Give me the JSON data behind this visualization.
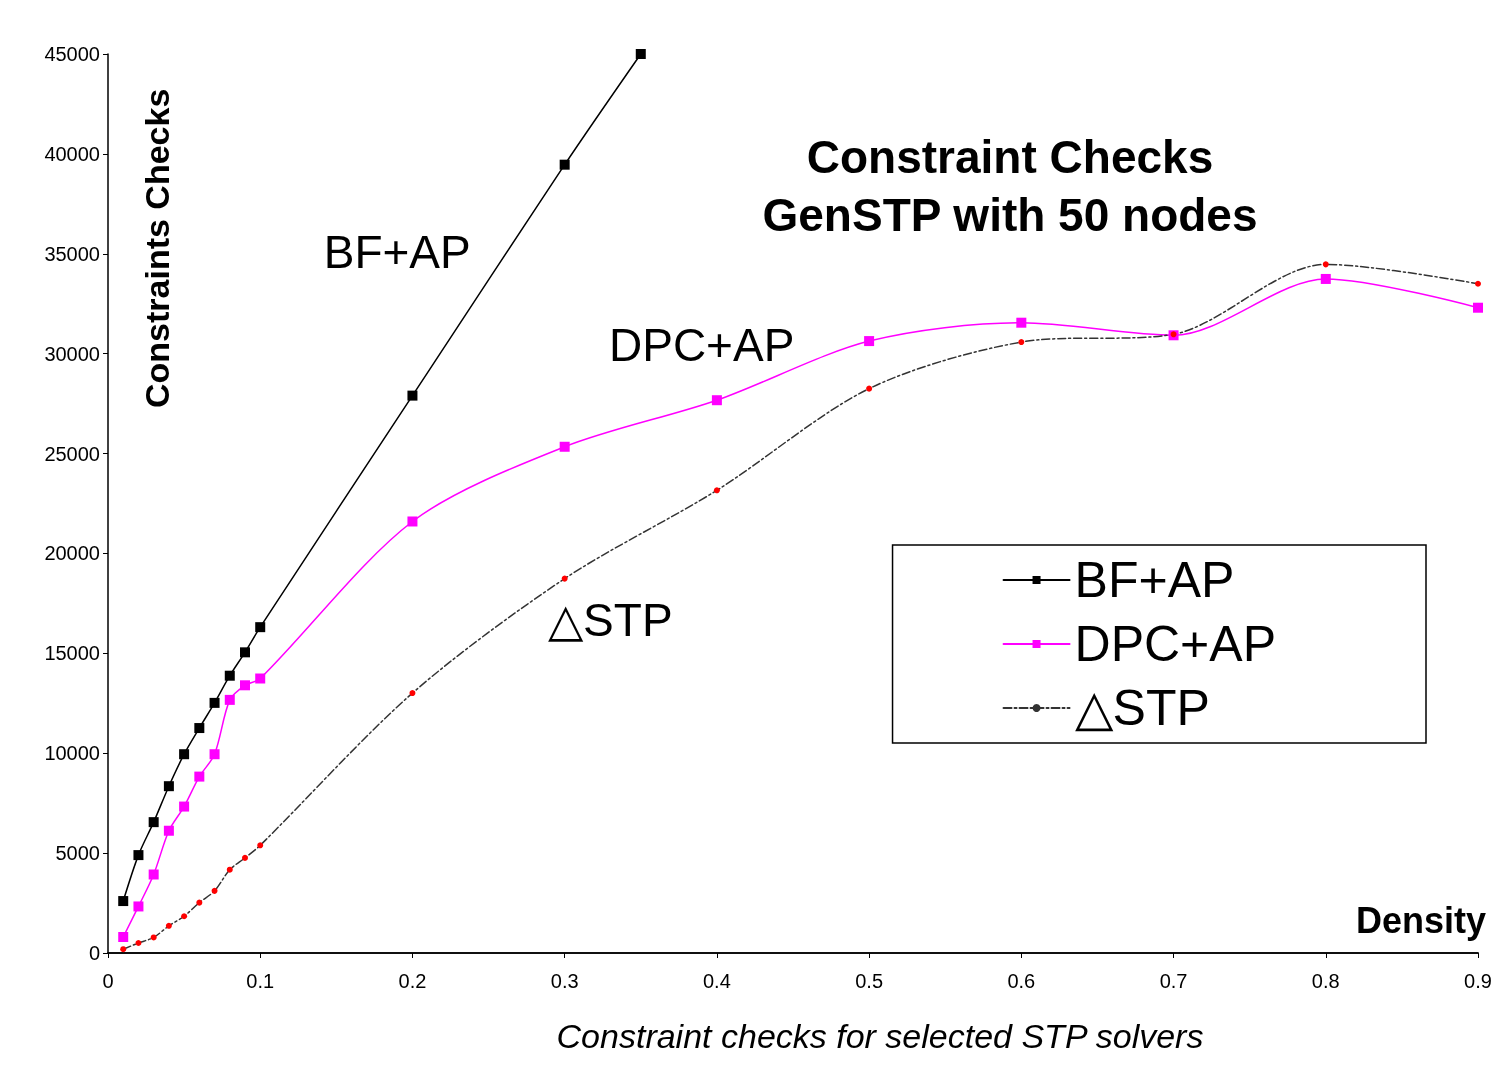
{
  "chart_data": {
    "type": "line",
    "title": "Constraint Checks\nGenSTP with 50 nodes",
    "xlabel": "Density",
    "ylabel": "Constraints Checks",
    "xlim": [
      0,
      0.9
    ],
    "xticks": [
      0,
      0.1,
      0.2,
      0.3,
      0.4,
      0.5,
      0.6,
      0.7,
      0.8,
      0.9
    ],
    "ylim": [
      0,
      45000
    ],
    "yticks": [
      0,
      5000,
      10000,
      15000,
      20000,
      25000,
      30000,
      35000,
      40000,
      45000
    ],
    "grid": false,
    "legend": "right",
    "series": [
      {
        "name": "BF+AP",
        "color": "#000000",
        "marker": "square",
        "line_style": "solid",
        "x": [
          0.01,
          0.02,
          0.03,
          0.04,
          0.05,
          0.06,
          0.07,
          0.08,
          0.09,
          0.1,
          0.2,
          0.3,
          0.35
        ],
        "values": [
          2600,
          4900,
          6550,
          8350,
          9950,
          11260,
          12520,
          13880,
          15050,
          16310,
          27900,
          39460,
          45000
        ]
      },
      {
        "name": "DPC+AP",
        "color": "#ff00ff",
        "marker": "square",
        "line_style": "solid",
        "x": [
          0.01,
          0.02,
          0.03,
          0.04,
          0.05,
          0.06,
          0.07,
          0.08,
          0.09,
          0.1,
          0.2,
          0.3,
          0.4,
          0.5,
          0.6,
          0.7,
          0.8,
          0.9
        ],
        "values": [
          800,
          2330,
          3930,
          6120,
          7330,
          8830,
          9950,
          12670,
          13400,
          13740,
          21600,
          25340,
          27670,
          30630,
          31550,
          30920,
          33740,
          32300
        ]
      },
      {
        "name": "△STP",
        "color": "#333333",
        "colors": [
          "#ff0000",
          "#ff0000",
          "#ff0000",
          "#ff0000",
          "#ff0000",
          "#ff0000",
          "#ff0000",
          "#ff0000",
          "#ff0000",
          "#ff0000",
          "#ff0000",
          "#ff0000",
          "#ff0000",
          "#ff0000",
          "#ff0000",
          "#ff0000",
          "#ff0000",
          "#ff0000"
        ],
        "marker": "circle",
        "line_style": "dashdot",
        "x": [
          0.01,
          0.02,
          0.03,
          0.04,
          0.05,
          0.06,
          0.07,
          0.08,
          0.09,
          0.1,
          0.2,
          0.3,
          0.4,
          0.5,
          0.6,
          0.7,
          0.8,
          0.9
        ],
        "values": [
          190,
          500,
          780,
          1360,
          1840,
          2520,
          3110,
          4170,
          4760,
          5390,
          13010,
          18740,
          23160,
          28250,
          30580,
          30970,
          34470,
          33500
        ]
      }
    ],
    "annotations": [
      "BF+AP",
      "DPC+AP",
      "△STP",
      "Constraint checks for selected STP solvers"
    ]
  }
}
